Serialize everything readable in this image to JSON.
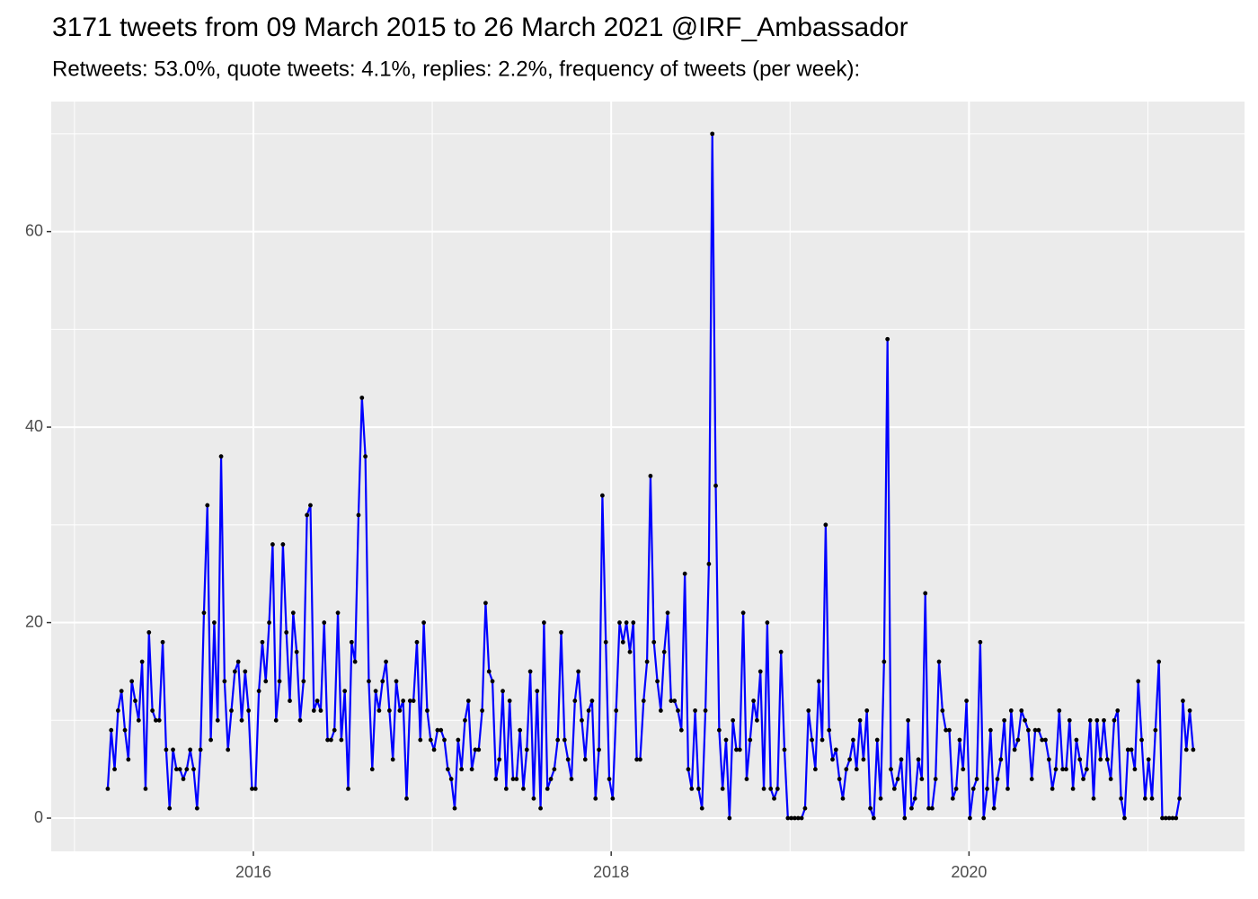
{
  "chart_data": {
    "type": "line",
    "title": "3171 tweets from 09 March 2015 to 26 March 2021 @IRF_Ambassador",
    "subtitle": "Retweets: 53.0%, quote tweets: 4.1%, replies: 2.2%, frequency of tweets (per week):",
    "x": [
      2015.186,
      2015.2052,
      2015.2244,
      2015.2436,
      2015.2628,
      2015.282,
      2015.3012,
      2015.3204,
      2015.3396,
      2015.3588,
      2015.378,
      2015.3972,
      2015.4164,
      2015.4356,
      2015.4548,
      2015.474,
      2015.4932,
      2015.5124,
      2015.5316,
      2015.5508,
      2015.57,
      2015.5892,
      2015.6084,
      2015.6276,
      2015.6468,
      2015.666,
      2015.6852,
      2015.7044,
      2015.7236,
      2015.7428,
      2015.762,
      2015.7812,
      2015.8004,
      2015.8196,
      2015.8388,
      2015.858,
      2015.8772,
      2015.8964,
      2015.9156,
      2015.9348,
      2015.954,
      2015.9732,
      2015.9924,
      2016.0116,
      2016.0308,
      2016.05,
      2016.0692,
      2016.0884,
      2016.1076,
      2016.1268,
      2016.146,
      2016.1652,
      2016.1844,
      2016.2036,
      2016.2228,
      2016.242,
      2016.2612,
      2016.2804,
      2016.2996,
      2016.3188,
      2016.338,
      2016.3572,
      2016.3764,
      2016.3956,
      2016.4148,
      2016.434,
      2016.4532,
      2016.4724,
      2016.4916,
      2016.5108,
      2016.53,
      2016.5492,
      2016.5684,
      2016.5876,
      2016.6068,
      2016.626,
      2016.6452,
      2016.6644,
      2016.6836,
      2016.7028,
      2016.722,
      2016.7412,
      2016.7604,
      2016.7796,
      2016.7988,
      2016.818,
      2016.8372,
      2016.8564,
      2016.8756,
      2016.8948,
      2016.914,
      2016.9332,
      2016.9524,
      2016.9716,
      2016.9908,
      2017.01,
      2017.0292,
      2017.0484,
      2017.0676,
      2017.0868,
      2017.106,
      2017.1252,
      2017.1444,
      2017.1636,
      2017.1828,
      2017.202,
      2017.2212,
      2017.2404,
      2017.2596,
      2017.2788,
      2017.298,
      2017.3172,
      2017.3364,
      2017.3556,
      2017.3748,
      2017.394,
      2017.4132,
      2017.4324,
      2017.4516,
      2017.4708,
      2017.49,
      2017.5092,
      2017.5284,
      2017.5476,
      2017.5668,
      2017.586,
      2017.6052,
      2017.6244,
      2017.6436,
      2017.6628,
      2017.682,
      2017.7012,
      2017.7204,
      2017.7396,
      2017.7588,
      2017.778,
      2017.7972,
      2017.8164,
      2017.8356,
      2017.8548,
      2017.874,
      2017.8932,
      2017.9124,
      2017.9316,
      2017.9508,
      2017.97,
      2017.9892,
      2018.0084,
      2018.0276,
      2018.0468,
      2018.066,
      2018.0852,
      2018.1044,
      2018.1236,
      2018.1428,
      2018.162,
      2018.1812,
      2018.2004,
      2018.2196,
      2018.2388,
      2018.258,
      2018.2772,
      2018.2964,
      2018.3156,
      2018.3348,
      2018.354,
      2018.3732,
      2018.3924,
      2018.4116,
      2018.4308,
      2018.45,
      2018.4692,
      2018.4884,
      2018.5076,
      2018.5268,
      2018.546,
      2018.5652,
      2018.5844,
      2018.6036,
      2018.6228,
      2018.642,
      2018.6612,
      2018.6804,
      2018.6996,
      2018.7188,
      2018.738,
      2018.7572,
      2018.7764,
      2018.7956,
      2018.8148,
      2018.834,
      2018.8532,
      2018.8724,
      2018.8916,
      2018.9108,
      2018.93,
      2018.9492,
      2018.9684,
      2018.9876,
      2019.0068,
      2019.026,
      2019.0452,
      2019.0644,
      2019.0836,
      2019.1028,
      2019.122,
      2019.1412,
      2019.1604,
      2019.1796,
      2019.1988,
      2019.218,
      2019.2372,
      2019.2564,
      2019.2756,
      2019.2948,
      2019.314,
      2019.3332,
      2019.3524,
      2019.3716,
      2019.3908,
      2019.41,
      2019.4292,
      2019.4484,
      2019.4676,
      2019.4868,
      2019.506,
      2019.5252,
      2019.5444,
      2019.5636,
      2019.5828,
      2019.602,
      2019.6212,
      2019.6404,
      2019.6596,
      2019.6788,
      2019.698,
      2019.7172,
      2019.7364,
      2019.7556,
      2019.7748,
      2019.794,
      2019.8132,
      2019.8324,
      2019.8516,
      2019.8708,
      2019.89,
      2019.9092,
      2019.9284,
      2019.9476,
      2019.9668,
      2019.986,
      2020.0052,
      2020.0244,
      2020.0436,
      2020.0628,
      2020.082,
      2020.1012,
      2020.1204,
      2020.1396,
      2020.1588,
      2020.178,
      2020.1972,
      2020.2164,
      2020.2356,
      2020.2548,
      2020.274,
      2020.2932,
      2020.3124,
      2020.3316,
      2020.3508,
      2020.37,
      2020.3892,
      2020.4084,
      2020.4276,
      2020.4468,
      2020.466,
      2020.4852,
      2020.5044,
      2020.5236,
      2020.5428,
      2020.562,
      2020.5812,
      2020.6004,
      2020.6196,
      2020.6388,
      2020.658,
      2020.6772,
      2020.6964,
      2020.7156,
      2020.7348,
      2020.754,
      2020.7732,
      2020.7924,
      2020.8116,
      2020.8308,
      2020.85,
      2020.8692,
      2020.8884,
      2020.9076,
      2020.9268,
      2020.946,
      2020.9652,
      2020.9844,
      2021.0036,
      2021.0228,
      2021.042,
      2021.0612,
      2021.0804,
      2021.0996,
      2021.1188,
      2021.138,
      2021.1572,
      2021.1764,
      2021.1956,
      2021.2148,
      2021.234,
      2021.2532
    ],
    "values": [
      3,
      9,
      5,
      11,
      13,
      9,
      6,
      14,
      12,
      10,
      16,
      3,
      19,
      11,
      10,
      10,
      18,
      7,
      1,
      7,
      5,
      5,
      4,
      5,
      7,
      5,
      1,
      7,
      21,
      32,
      8,
      20,
      10,
      37,
      14,
      7,
      11,
      15,
      16,
      10,
      15,
      11,
      3,
      3,
      13,
      18,
      14,
      20,
      28,
      10,
      14,
      28,
      19,
      12,
      21,
      17,
      10,
      14,
      31,
      32,
      11,
      12,
      11,
      20,
      8,
      8,
      9,
      21,
      8,
      13,
      3,
      18,
      16,
      31,
      43,
      37,
      14,
      5,
      13,
      11,
      14,
      16,
      11,
      6,
      14,
      11,
      12,
      2,
      12,
      12,
      18,
      8,
      20,
      11,
      8,
      7,
      9,
      9,
      8,
      5,
      4,
      1,
      8,
      5,
      10,
      12,
      5,
      7,
      7,
      11,
      22,
      15,
      14,
      4,
      6,
      13,
      3,
      12,
      4,
      4,
      9,
      3,
      7,
      15,
      2,
      13,
      1,
      20,
      3,
      4,
      5,
      8,
      19,
      8,
      6,
      4,
      12,
      15,
      10,
      6,
      11,
      12,
      2,
      7,
      33,
      18,
      4,
      2,
      11,
      20,
      18,
      20,
      17,
      20,
      6,
      6,
      12,
      16,
      35,
      18,
      14,
      11,
      17,
      21,
      12,
      12,
      11,
      9,
      25,
      5,
      3,
      11,
      3,
      1,
      11,
      26,
      70,
      34,
      9,
      3,
      8,
      0,
      10,
      7,
      7,
      21,
      4,
      8,
      12,
      10,
      15,
      3,
      20,
      3,
      2,
      3,
      17,
      7,
      0,
      0,
      0,
      0,
      0,
      1,
      11,
      8,
      5,
      14,
      8,
      30,
      9,
      6,
      7,
      4,
      2,
      5,
      6,
      8,
      5,
      10,
      6,
      11,
      1,
      0,
      8,
      2,
      16,
      49,
      5,
      3,
      4,
      6,
      0,
      10,
      1,
      2,
      6,
      4,
      23,
      1,
      1,
      4,
      16,
      11,
      9,
      9,
      2,
      3,
      8,
      5,
      12,
      0,
      3,
      4,
      18,
      0,
      3,
      9,
      1,
      4,
      6,
      10,
      3,
      11,
      7,
      8,
      11,
      10,
      9,
      4,
      9,
      9,
      8,
      8,
      6,
      3,
      5,
      11,
      5,
      5,
      10,
      3,
      8,
      6,
      4,
      5,
      10,
      2,
      10,
      6,
      10,
      6,
      4,
      10,
      11,
      2,
      0,
      7,
      7,
      5,
      14,
      8,
      2,
      6,
      2,
      9,
      16,
      0,
      0,
      0,
      0,
      0,
      2,
      12,
      7,
      11,
      7
    ],
    "color": "#0000ff",
    "marker_color": "#000000",
    "xlim": [
      2014.87,
      2021.54
    ],
    "ylim": [
      -3.4,
      73.3
    ],
    "xticks": [
      2016,
      2018,
      2020
    ],
    "yticks": [
      0,
      20,
      40,
      60
    ],
    "grid": true
  }
}
